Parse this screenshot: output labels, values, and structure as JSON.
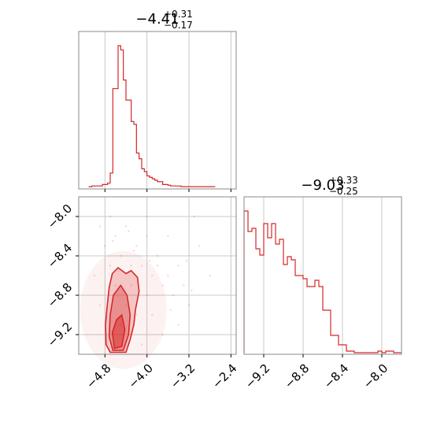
{
  "chart_data": [
    {
      "type": "histogram",
      "panel": "param1-marginal",
      "title": {
        "median": "−4.41",
        "plus": "+0.31",
        "minus": "−0.17"
      },
      "xlim": [
        -5.3,
        -2.3
      ],
      "grid": true,
      "color": "#d62728",
      "bin_edges": [
        -5.1,
        -5.05,
        -5.0,
        -4.95,
        -4.9,
        -4.85,
        -4.8,
        -4.75,
        -4.7,
        -4.65,
        -4.6,
        -4.55,
        -4.5,
        -4.45,
        -4.4,
        -4.35,
        -4.3,
        -4.25,
        -4.2,
        -4.15,
        -4.1,
        -4.05,
        -4.0,
        -3.95,
        -3.9,
        -3.85,
        -3.8,
        -3.75,
        -3.7,
        -3.65,
        -3.6,
        -3.55,
        -3.5,
        -3.45,
        -3.4,
        -3.35,
        -3.3,
        -3.25,
        -3.2,
        -3.15,
        -3.1,
        -3.05,
        -3.0,
        -2.95,
        -2.9,
        -2.85,
        -2.8,
        -2.75,
        -2.7
      ],
      "counts": [
        0.005,
        0.01,
        0.01,
        0.01,
        0.01,
        0.02,
        0.02,
        0.03,
        0.1,
        0.69,
        0.69,
        0.99,
        0.96,
        0.75,
        0.61,
        0.61,
        0.46,
        0.44,
        0.24,
        0.2,
        0.13,
        0.11,
        0.08,
        0.07,
        0.06,
        0.05,
        0.04,
        0.04,
        0.02,
        0.02,
        0.015,
        0.01,
        0.01,
        0.01,
        0.01,
        0.005,
        0.005,
        0.005,
        0.005,
        0.005,
        0.005,
        0.005,
        0.005,
        0.005,
        0.005,
        0.005,
        0.005,
        0.005
      ]
    },
    {
      "type": "histogram",
      "panel": "param2-marginal",
      "title": {
        "median": "−9.03",
        "plus": "+0.33",
        "minus": "−0.25"
      },
      "xlim": [
        -9.4,
        -7.8
      ],
      "xticks": [
        "−9.2",
        "−8.8",
        "−8.4",
        "−8.0"
      ],
      "xtick_values": [
        -9.2,
        -8.8,
        -8.4,
        -8.0
      ],
      "grid": true,
      "color": "#d62728",
      "bin_edges": [
        -9.4,
        -9.36,
        -9.32,
        -9.28,
        -9.24,
        -9.2,
        -9.16,
        -9.12,
        -9.08,
        -9.04,
        -9.0,
        -8.96,
        -8.92,
        -8.88,
        -8.84,
        -8.8,
        -8.76,
        -8.72,
        -8.68,
        -8.64,
        -8.6,
        -8.56,
        -8.52,
        -8.48,
        -8.44,
        -8.4,
        -8.36,
        -8.32,
        -8.28,
        -8.24,
        -8.2,
        -8.16,
        -8.12,
        -8.08,
        -8.04,
        -8.0,
        -7.96,
        -7.92,
        -7.88,
        -7.84,
        -7.8
      ],
      "counts": [
        0.9,
        0.77,
        0.79,
        0.66,
        0.62,
        0.82,
        0.73,
        0.82,
        0.69,
        0.72,
        0.56,
        0.61,
        0.59,
        0.49,
        0.49,
        0.47,
        0.42,
        0.42,
        0.46,
        0.42,
        0.27,
        0.27,
        0.11,
        0.11,
        0.05,
        0.05,
        0.01,
        0.01,
        0.0,
        0.0,
        0.0,
        0.0,
        0.0,
        0.0,
        0.01,
        0.0,
        0.01,
        0.01,
        0.0,
        0.0
      ]
    },
    {
      "type": "scatter+contour",
      "panel": "joint",
      "xlim": [
        -5.3,
        -2.3
      ],
      "ylim": [
        -9.4,
        -7.8
      ],
      "xticks": [
        "−4.8",
        "−4.0",
        "−3.2",
        "−2.4"
      ],
      "xtick_values": [
        -4.8,
        -4.0,
        -3.2,
        -2.4
      ],
      "yticks": [
        "−8.0",
        "−8.4",
        "−8.8",
        "−9.2"
      ],
      "ytick_values": [
        -8.0,
        -8.4,
        -8.8,
        -9.2
      ],
      "grid": true,
      "color": "#d62728",
      "contour_levels": [
        [
          [
            -4.7,
            -9.38
          ],
          [
            -4.78,
            -9.3
          ],
          [
            -4.79,
            -9.1
          ],
          [
            -4.76,
            -8.92
          ],
          [
            -4.72,
            -8.72
          ],
          [
            -4.66,
            -8.58
          ],
          [
            -4.55,
            -8.52
          ],
          [
            -4.4,
            -8.58
          ],
          [
            -4.3,
            -8.55
          ],
          [
            -4.18,
            -8.62
          ],
          [
            -4.15,
            -8.76
          ],
          [
            -4.22,
            -8.95
          ],
          [
            -4.25,
            -9.1
          ],
          [
            -4.32,
            -9.25
          ],
          [
            -4.4,
            -9.38
          ]
        ],
        [
          [
            -4.65,
            -9.36
          ],
          [
            -4.72,
            -9.22
          ],
          [
            -4.7,
            -9.0
          ],
          [
            -4.64,
            -8.8
          ],
          [
            -4.5,
            -8.7
          ],
          [
            -4.38,
            -8.8
          ],
          [
            -4.32,
            -9.0
          ],
          [
            -4.35,
            -9.2
          ],
          [
            -4.45,
            -9.36
          ]
        ],
        [
          [
            -4.62,
            -9.34
          ],
          [
            -4.66,
            -9.18
          ],
          [
            -4.58,
            -9.05
          ],
          [
            -4.48,
            -9.0
          ],
          [
            -4.42,
            -9.15
          ],
          [
            -4.48,
            -9.32
          ]
        ]
      ],
      "points": [
        [
          -4.9,
          -8.1
        ],
        [
          -4.7,
          -8.0
        ],
        [
          -4.6,
          -8.2
        ],
        [
          -4.4,
          -8.1
        ],
        [
          -4.2,
          -8.3
        ],
        [
          -4.0,
          -8.0
        ],
        [
          -3.8,
          -8.4
        ],
        [
          -3.6,
          -8.2
        ],
        [
          -3.4,
          -8.5
        ],
        [
          -3.3,
          -8.7
        ],
        [
          -3.1,
          -8.0
        ],
        [
          -3.0,
          -8.3
        ],
        [
          -2.8,
          -8.6
        ],
        [
          -4.5,
          -8.4
        ],
        [
          -4.3,
          -8.5
        ],
        [
          -4.1,
          -8.5
        ],
        [
          -3.9,
          -8.6
        ],
        [
          -3.7,
          -8.7
        ],
        [
          -3.5,
          -8.8
        ],
        [
          -3.2,
          -8.9
        ],
        [
          -4.8,
          -8.3
        ],
        [
          -5.0,
          -8.6
        ],
        [
          -4.9,
          -8.9
        ],
        [
          -4.6,
          -8.7
        ],
        [
          -4.4,
          -8.9
        ],
        [
          -4.2,
          -9.0
        ],
        [
          -4.0,
          -8.8
        ],
        [
          -3.9,
          -9.0
        ],
        [
          -3.7,
          -9.2
        ],
        [
          -4.1,
          -9.3
        ],
        [
          -4.3,
          -8.7
        ],
        [
          -4.5,
          -9.1
        ],
        [
          -3.8,
          -8.5
        ],
        [
          -3.4,
          -9.1
        ],
        [
          -4.7,
          -8.5
        ],
        [
          -4.0,
          -8.2
        ],
        [
          -3.6,
          -8.6
        ],
        [
          -4.25,
          -8.35
        ],
        [
          -3.95,
          -8.45
        ],
        [
          -3.55,
          -8.95
        ],
        [
          -4.65,
          -8.25
        ],
        [
          -3.25,
          -8.45
        ],
        [
          -3.15,
          -8.75
        ],
        [
          -4.35,
          -8.15
        ]
      ]
    }
  ]
}
